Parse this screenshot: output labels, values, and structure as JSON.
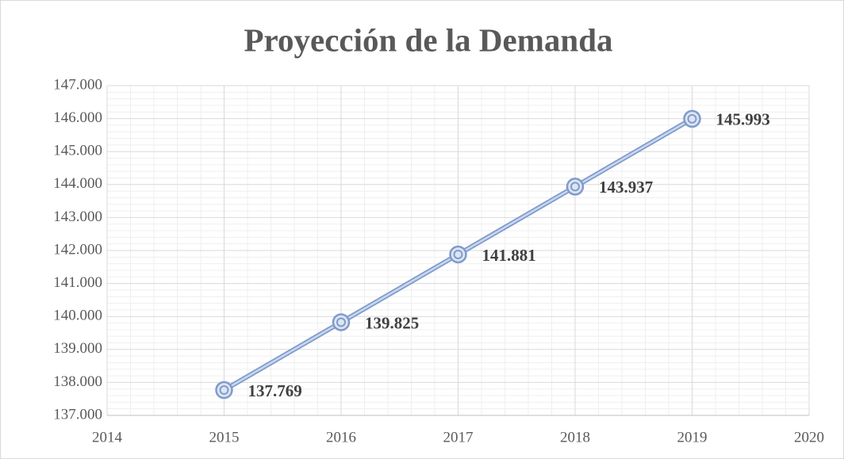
{
  "chart_data": {
    "type": "line",
    "title": "Proyección de la Demanda",
    "x": [
      2015,
      2016,
      2017,
      2018,
      2019
    ],
    "values": [
      137769,
      139825,
      141881,
      143937,
      145993
    ],
    "value_labels": [
      "137.769",
      "139.825",
      "141.881",
      "143.937",
      "145.993"
    ],
    "color": "#7f9bcb",
    "xlim": [
      2014,
      2020
    ],
    "xticks": [
      2014,
      2015,
      2016,
      2017,
      2018,
      2019,
      2020
    ],
    "ylim": [
      137000,
      147000
    ],
    "yticks": [
      {
        "value": 137000,
        "label": "137.000"
      },
      {
        "value": 138000,
        "label": "138.000"
      },
      {
        "value": 139000,
        "label": "139.000"
      },
      {
        "value": 140000,
        "label": "140.000"
      },
      {
        "value": 141000,
        "label": "141.000"
      },
      {
        "value": 142000,
        "label": "142.000"
      },
      {
        "value": 143000,
        "label": "143.000"
      },
      {
        "value": 144000,
        "label": "144.000"
      },
      {
        "value": 145000,
        "label": "145.000"
      },
      {
        "value": 146000,
        "label": "146.000"
      },
      {
        "value": 147000,
        "label": "147.000"
      }
    ],
    "grid": true,
    "minor_grid": true
  }
}
